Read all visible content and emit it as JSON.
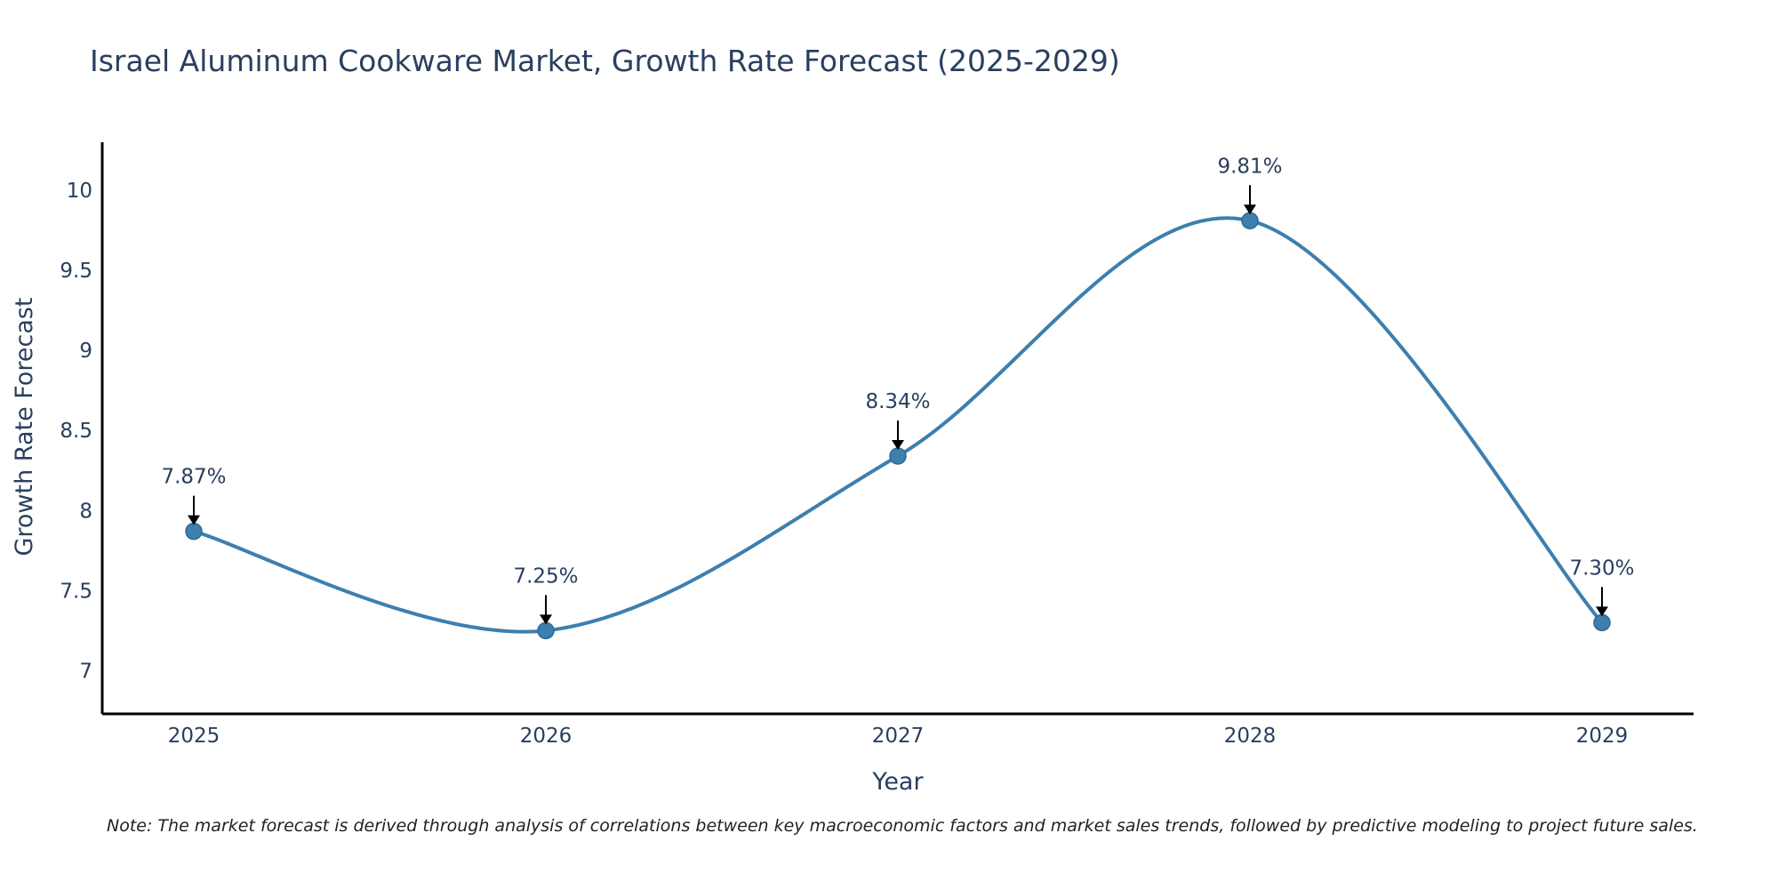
{
  "chart_data": {
    "type": "line",
    "title": "Israel Aluminum Cookware Market, Growth Rate Forecast (2025-2029)",
    "xlabel": "Year",
    "ylabel": "Growth Rate Forecast",
    "categories": [
      "2025",
      "2026",
      "2027",
      "2028",
      "2029"
    ],
    "series": [
      {
        "name": "Growth Rate Forecast",
        "values": [
          7.87,
          7.25,
          8.34,
          9.81,
          7.3
        ],
        "labels": [
          "7.87%",
          "7.25%",
          "8.34%",
          "9.81%",
          "7.30%"
        ]
      }
    ],
    "yticks": [
      7,
      7.5,
      8,
      8.5,
      9,
      9.5,
      10
    ],
    "ytick_labels": [
      "7",
      "7.5",
      "8",
      "8.5",
      "9",
      "9.5",
      "10"
    ],
    "ylim": [
      6.73,
      10.3
    ],
    "grid": false,
    "line_shape": "spline",
    "colors": {
      "line": "#3d7fae",
      "marker": "#3d7fae",
      "arrow": "#000000",
      "axis": "#000000",
      "text": "#2a3f5f"
    }
  },
  "footnote": "Note: The market forecast is derived through analysis of correlations between key macroeconomic factors and market sales trends, followed by predictive modeling to project future sales."
}
